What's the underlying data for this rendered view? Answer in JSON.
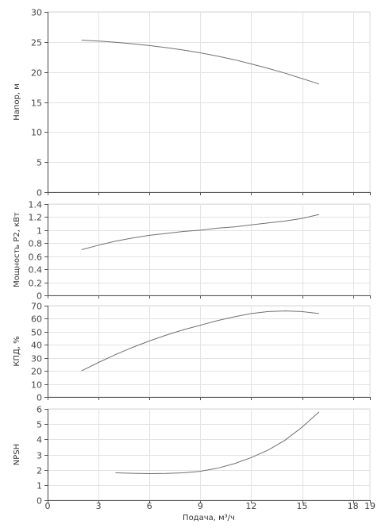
{
  "chart_data": {
    "type": "line",
    "xlabel": "Подача, м³/ч",
    "xlim": [
      0,
      19
    ],
    "xticks": [
      0,
      3,
      6,
      9,
      12,
      15,
      18,
      19
    ],
    "grid": true,
    "line_color": "#707070",
    "panels": [
      {
        "id": "head",
        "ylabel": "Напор, м",
        "ylim": [
          0,
          30
        ],
        "yticks": [
          0,
          5,
          10,
          15,
          20,
          25,
          30
        ],
        "series": [
          {
            "x": [
              2,
              3,
              4,
              5,
              6,
              7,
              8,
              9,
              10,
              11,
              12,
              13,
              14,
              15,
              16
            ],
            "y": [
              25.3,
              25.15,
              24.95,
              24.7,
              24.4,
              24.05,
              23.65,
              23.2,
              22.65,
              22.05,
              21.35,
              20.6,
              19.8,
              18.9,
              18.0
            ]
          }
        ]
      },
      {
        "id": "power",
        "ylabel": "Мощность P2, кВт",
        "ylim": [
          0,
          1.4
        ],
        "yticks": [
          0,
          0.2,
          0.4,
          0.6,
          0.8,
          1,
          1.2,
          1.4
        ],
        "series": [
          {
            "x": [
              2,
              3,
              4,
              5,
              6,
              7,
              8,
              9,
              10,
              11,
              12,
              13,
              14,
              15,
              16
            ],
            "y": [
              0.7,
              0.77,
              0.83,
              0.88,
              0.92,
              0.95,
              0.98,
              1.0,
              1.03,
              1.05,
              1.08,
              1.11,
              1.14,
              1.18,
              1.24
            ]
          }
        ]
      },
      {
        "id": "efficiency",
        "ylabel": "КПД, %",
        "ylim": [
          0,
          70
        ],
        "yticks": [
          0,
          10,
          20,
          30,
          40,
          50,
          60,
          70
        ],
        "series": [
          {
            "x": [
              2,
              3,
              4,
              5,
              6,
              7,
              8,
              9,
              10,
              11,
              12,
              13,
              14,
              15,
              16
            ],
            "y": [
              20,
              26.5,
              32.5,
              38,
              43,
              47.5,
              51.5,
              55,
              58.5,
              61.5,
              64,
              65.5,
              66,
              65.5,
              64
            ]
          }
        ]
      },
      {
        "id": "npsh",
        "ylabel": "NPSH",
        "ylim": [
          0,
          6
        ],
        "yticks": [
          0,
          1,
          2,
          3,
          4,
          5,
          6
        ],
        "series": [
          {
            "x": [
              4,
              5,
              6,
              7,
              8,
              9,
              10,
              11,
              12,
              13,
              14,
              15,
              16
            ],
            "y": [
              1.8,
              1.77,
              1.75,
              1.76,
              1.8,
              1.9,
              2.1,
              2.4,
              2.8,
              3.3,
              3.95,
              4.8,
              5.8
            ]
          }
        ]
      }
    ]
  }
}
